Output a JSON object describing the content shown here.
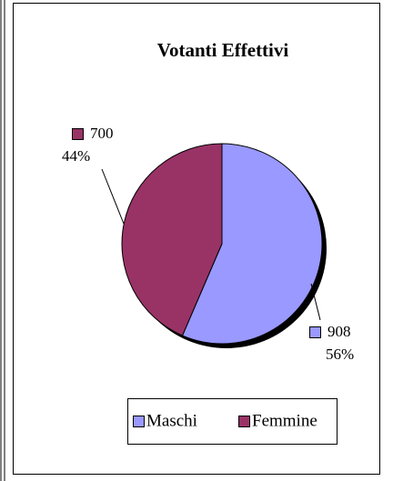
{
  "chart_data": {
    "type": "pie",
    "title": "Votanti Effettivi",
    "categories": [
      "Maschi",
      "Femmine"
    ],
    "values": [
      908,
      700
    ],
    "percent_labels": [
      "56%",
      "44%"
    ],
    "colors": [
      "#9999ff",
      "#993366"
    ],
    "legend": "bottom"
  }
}
